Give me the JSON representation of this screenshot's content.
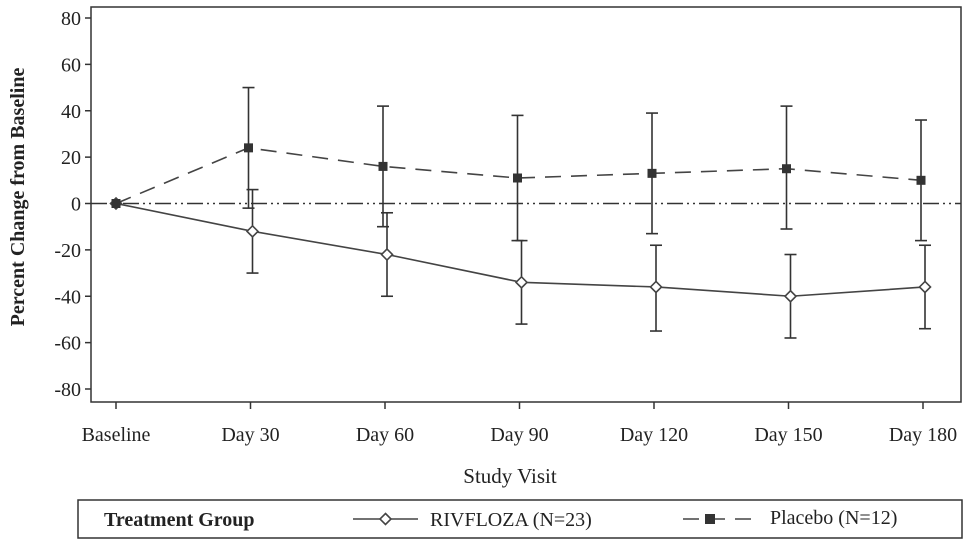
{
  "chart_data": {
    "type": "line",
    "title": "",
    "xlabel": "Study Visit",
    "ylabel": "Percent Change from Baseline",
    "ylim": [
      -90,
      85
    ],
    "yticks": [
      80,
      60,
      40,
      20,
      0,
      -20,
      -40,
      -60,
      -80
    ],
    "ytick_labels": [
      "80",
      "60",
      "40",
      "20",
      "0",
      "-20",
      "-40",
      "-60",
      "-80"
    ],
    "categories": [
      "Baseline",
      "Day 30",
      "Day 60",
      "Day 90",
      "Day 120",
      "Day 150",
      "Day 180"
    ],
    "reference_line": 0,
    "legend_title": "Treatment Group",
    "legend_placement": "bottom",
    "series": [
      {
        "name": "RIVFLOZA (N=23)",
        "marker": "diamond-open",
        "line_style": "solid",
        "values": [
          0,
          -12,
          -22,
          -34,
          -36,
          -40,
          -36
        ],
        "err_low": [
          0,
          -30,
          -40,
          -52,
          -55,
          -58,
          -54
        ],
        "err_high": [
          0,
          6,
          -4,
          -16,
          -18,
          -22,
          -18
        ]
      },
      {
        "name": "Placebo (N=12)",
        "marker": "square-filled",
        "line_style": "dashed",
        "values": [
          0,
          24,
          16,
          11,
          13,
          15,
          10
        ],
        "err_low": [
          0,
          -2,
          -10,
          -16,
          -13,
          -11,
          -16
        ],
        "err_high": [
          0,
          50,
          42,
          38,
          39,
          42,
          36
        ]
      }
    ]
  }
}
